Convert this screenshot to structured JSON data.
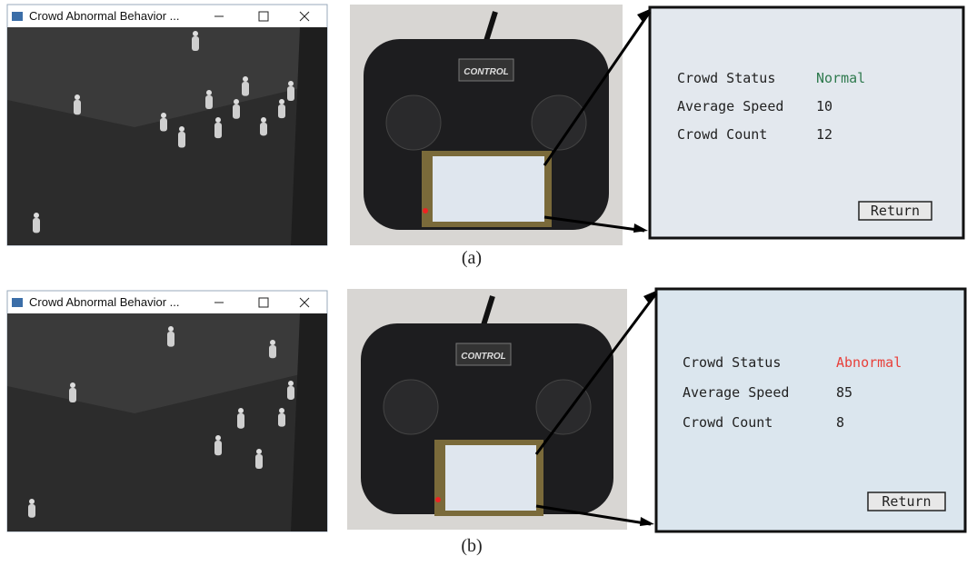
{
  "panels": [
    {
      "window_title": "Crowd Abnormal Behavior ...",
      "controller_brand": "CONTROL",
      "screen": {
        "rows": [
          [
            "Crowd Status",
            "Normal"
          ],
          [
            "Average Speed",
            "10"
          ],
          [
            "Crowd Count",
            "12"
          ]
        ],
        "status_color": "#2f7a4e",
        "button": "Return"
      },
      "caption": "(a)"
    },
    {
      "window_title": "Crowd Abnormal Behavior ...",
      "controller_brand": "CONTROL",
      "screen": {
        "rows": [
          [
            "Crowd Status",
            "Abnormal"
          ],
          [
            "Average Speed",
            "85"
          ],
          [
            "Crowd Count",
            "8"
          ]
        ],
        "status_color": "#e8403a",
        "button": "Return"
      },
      "caption": "(b)"
    }
  ]
}
